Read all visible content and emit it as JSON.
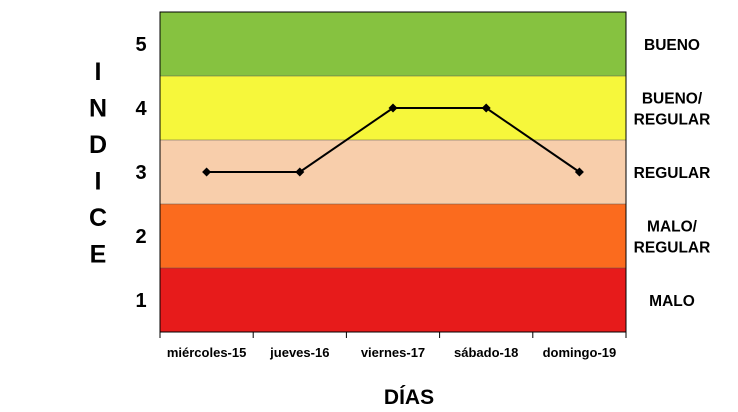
{
  "chart_data": {
    "type": "line",
    "xlabel": "DÍAS",
    "ylabel": "INDICE",
    "categories": [
      "miércoles-15",
      "jueves-16",
      "viernes-17",
      "sábado-18",
      "domingo-19"
    ],
    "values": [
      3,
      3,
      4,
      4,
      3
    ],
    "ylim": [
      0.5,
      5.5
    ],
    "yticks": [
      1,
      2,
      3,
      4,
      5
    ],
    "grid": false,
    "bands": [
      {
        "from": 0.5,
        "to": 1.5,
        "color": "#e71b1b",
        "label_lines": [
          "MALO"
        ]
      },
      {
        "from": 1.5,
        "to": 2.5,
        "color": "#fb6b1e",
        "label_lines": [
          "MALO/",
          "REGULAR"
        ]
      },
      {
        "from": 2.5,
        "to": 3.5,
        "color": "#f8ceab",
        "label_lines": [
          "REGULAR"
        ]
      },
      {
        "from": 3.5,
        "to": 4.5,
        "color": "#f6f73b",
        "label_lines": [
          "BUENO/",
          "REGULAR"
        ]
      },
      {
        "from": 4.5,
        "to": 5.5,
        "color": "#86c240",
        "label_lines": [
          "BUENO"
        ]
      }
    ],
    "line_color": "#000000"
  }
}
